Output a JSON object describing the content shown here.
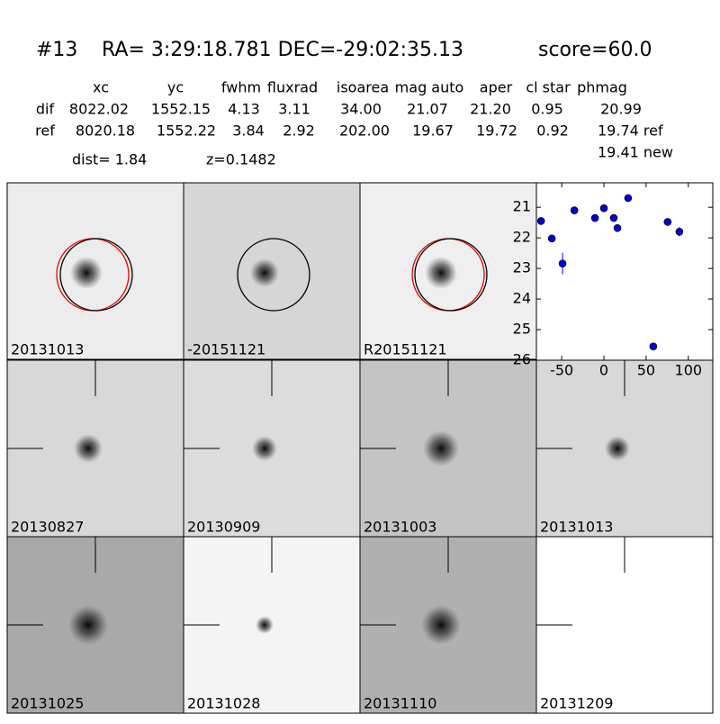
{
  "header": {
    "id": "#13",
    "coords": "RA= 3:29:18.781 DEC=-29:02:35.13",
    "score": "score=60.0"
  },
  "table": {
    "columns": [
      "xc",
      "yc",
      "fwhm",
      "fluxrad",
      "isoarea",
      "mag auto",
      "aper",
      "cl star",
      "phmag"
    ],
    "rows": [
      [
        "dif",
        "8022.02",
        "1552.15",
        "4.13",
        "3.11",
        "34.00",
        "21.07",
        "21.20",
        "0.95",
        "20.99"
      ],
      [
        "ref",
        "8020.18",
        "1552.22",
        "3.84",
        "2.92",
        "202.00",
        "19.67",
        "19.72",
        "0.92",
        "19.74 ref"
      ]
    ],
    "extra": "19.41 new",
    "dist": "dist=  1.84",
    "z": "z=0.1482"
  },
  "panels": [
    {
      "label": "20131013",
      "color": "#000000"
    },
    {
      "label": "-20151121",
      "color": "#000000"
    },
    {
      "label": "R20151121",
      "color": "#000000"
    },
    {
      "label": "20130827",
      "color": "#000000"
    },
    {
      "label": "20130909",
      "color": "#000000"
    },
    {
      "label": "20131003",
      "color": "#000000"
    },
    {
      "label": "20131013",
      "color": "#ff0000"
    },
    {
      "label": "20131025",
      "color": "#000000"
    },
    {
      "label": "20131028",
      "color": "#000000"
    },
    {
      "label": "20131110",
      "color": "#000000"
    },
    {
      "label": "20131209",
      "color": "#000000"
    }
  ],
  "chart_data": {
    "type": "scatter",
    "color": "#0000cc",
    "x": [
      -74.5,
      -61.7,
      -49,
      -35,
      -10.6,
      0,
      11.7,
      16,
      28.7,
      58.5,
      75.5,
      89.4
    ],
    "values": [
      21.45,
      22.02,
      22.84,
      21.1,
      21.35,
      21.03,
      21.35,
      21.68,
      20.7,
      25.55,
      21.48,
      21.8
    ],
    "errors": [
      0.05,
      0.1,
      0.35,
      0.05,
      0.05,
      0.05,
      0.08,
      0.08,
      0.05,
      0.08,
      0.05,
      0.15
    ],
    "xlim": [
      -80,
      129
    ],
    "ylim": [
      26,
      20.2
    ],
    "xticks": [
      -50,
      0,
      50,
      100
    ],
    "yticks": [
      21,
      22,
      23,
      24,
      25,
      26
    ]
  }
}
